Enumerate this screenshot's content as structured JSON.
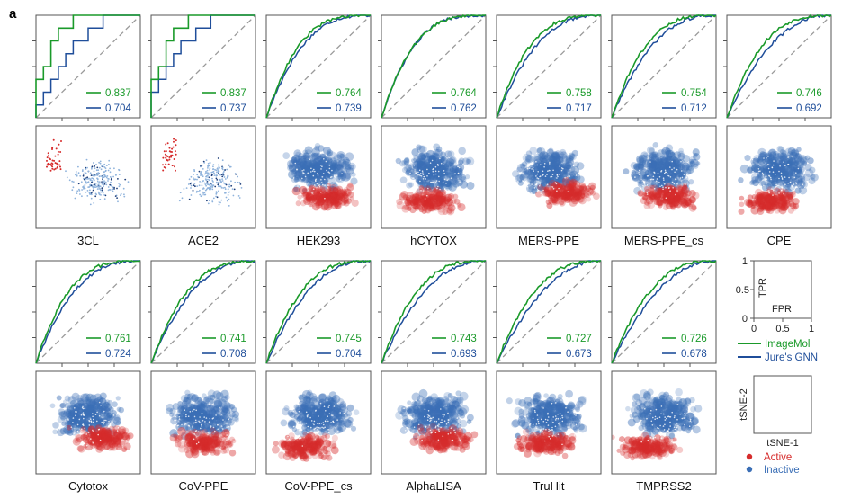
{
  "panel_letter": "a",
  "colors": {
    "imagemol": "#1a9a2a",
    "gnn": "#1f4e9a",
    "diagonal": "#9a9a9a",
    "active": "#d62c2c",
    "inactive": "#3b6fb6",
    "frame": "#555555"
  },
  "legend": {
    "axis_x_label": "FPR",
    "axis_y_label": "TPR",
    "x_ticks": [
      "0",
      "0.5",
      "1"
    ],
    "y_ticks": [
      "0",
      "0.5",
      "1"
    ],
    "line_imagemol": "ImageMol",
    "line_gnn": "Jure's GNN",
    "tsne_x_label": "tSNE-1",
    "tsne_y_label": "tSNE-2",
    "dot_active": "Active",
    "dot_inactive": "Inactive"
  },
  "chart_data": {
    "type": "line",
    "xlabel": "FPR",
    "ylabel": "TPR",
    "xlim": [
      0,
      1
    ],
    "ylim": [
      0,
      1
    ],
    "series_names": [
      "ImageMol",
      "Jure's GNN"
    ],
    "panels": [
      {
        "name": "3CL",
        "auc_imagemol": "0.837",
        "auc_gnn": "0.704"
      },
      {
        "name": "ACE2",
        "auc_imagemol": "0.837",
        "auc_gnn": "0.737"
      },
      {
        "name": "HEK293",
        "auc_imagemol": "0.764",
        "auc_gnn": "0.739"
      },
      {
        "name": "hCYTOX",
        "auc_imagemol": "0.764",
        "auc_gnn": "0.762"
      },
      {
        "name": "MERS-PPE",
        "auc_imagemol": "0.758",
        "auc_gnn": "0.717"
      },
      {
        "name": "MERS-PPE_cs",
        "auc_imagemol": "0.754",
        "auc_gnn": "0.712"
      },
      {
        "name": "CPE",
        "auc_imagemol": "0.746",
        "auc_gnn": "0.692"
      },
      {
        "name": "Cytotox",
        "auc_imagemol": "0.761",
        "auc_gnn": "0.724"
      },
      {
        "name": "CoV-PPE",
        "auc_imagemol": "0.741",
        "auc_gnn": "0.708"
      },
      {
        "name": "CoV-PPE_cs",
        "auc_imagemol": "0.745",
        "auc_gnn": "0.704"
      },
      {
        "name": "AlphaLISA",
        "auc_imagemol": "0.743",
        "auc_gnn": "0.693"
      },
      {
        "name": "TruHit",
        "auc_imagemol": "0.727",
        "auc_gnn": "0.673"
      },
      {
        "name": "TMPRSS2",
        "auc_imagemol": "0.726",
        "auc_gnn": "0.678"
      }
    ]
  }
}
